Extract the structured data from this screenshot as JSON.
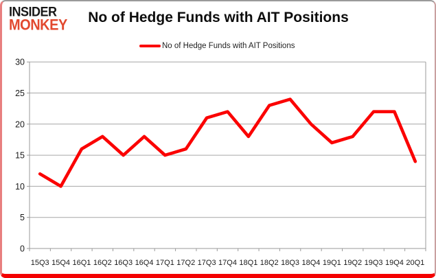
{
  "logo": {
    "line1": "INSIDER",
    "line2": "MONKEY",
    "line1_color": "#161616",
    "line2_color": "#e2492f"
  },
  "header": {
    "title": "No of Hedge Funds with AIT Positions"
  },
  "legend": {
    "label": "No of Hedge Funds with AIT Positions"
  },
  "chart_data": {
    "type": "line",
    "title": "No of Hedge Funds with AIT Positions",
    "categories": [
      "15Q3",
      "15Q4",
      "16Q1",
      "16Q2",
      "16Q3",
      "16Q4",
      "17Q1",
      "17Q2",
      "17Q3",
      "17Q4",
      "18Q1",
      "18Q2",
      "18Q3",
      "18Q4",
      "19Q1",
      "19Q2",
      "19Q3",
      "19Q4",
      "20Q1"
    ],
    "series": [
      {
        "name": "No of Hedge Funds with AIT Positions",
        "color": "#fb0000",
        "values": [
          12,
          10,
          16,
          18,
          15,
          18,
          15,
          16,
          21,
          22,
          18,
          23,
          24,
          20,
          17,
          18,
          22,
          22,
          14
        ]
      }
    ],
    "xlabel": "",
    "ylabel": "",
    "ylim": [
      0,
      30
    ],
    "yticks": [
      0,
      5,
      10,
      15,
      20,
      25,
      30
    ],
    "grid": true,
    "legend_position": "top",
    "grid_color": "#a6a6a6",
    "axis_color": "#9a9a9a",
    "label_color": "#1a1a1a",
    "frame_border_color": "#f40000"
  }
}
